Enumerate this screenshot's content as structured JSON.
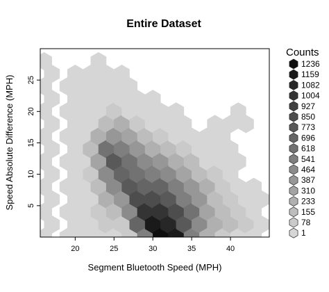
{
  "chart_data": {
    "type": "heatmap",
    "title": "Entire Dataset",
    "xlabel": "Segment Bluetooth Speed (MPH)",
    "ylabel": "Speed Absolute Difference (MPH)",
    "xlim": [
      15.5,
      45
    ],
    "ylim": [
      0,
      30
    ],
    "x_ticks": [
      20,
      25,
      30,
      35,
      40
    ],
    "y_ticks": [
      5,
      10,
      15,
      20,
      25
    ],
    "grid": false,
    "legend": {
      "title": "Counts",
      "placement": "right",
      "levels": [
        1236,
        1159,
        1082,
        1004,
        927,
        850,
        773,
        696,
        618,
        541,
        464,
        387,
        310,
        233,
        155,
        78,
        1
      ]
    },
    "hex_radius": 1.2,
    "bins": [
      {
        "x": 16,
        "y": 28,
        "count": 1
      },
      {
        "x": 16,
        "y": 24,
        "count": 1
      },
      {
        "x": 16,
        "y": 20,
        "count": 1
      },
      {
        "x": 16,
        "y": 16,
        "count": 1
      },
      {
        "x": 16,
        "y": 12,
        "count": 1
      },
      {
        "x": 16,
        "y": 8,
        "count": 1
      },
      {
        "x": 16,
        "y": 4,
        "count": 1
      },
      {
        "x": 16,
        "y": 0,
        "count": 1
      },
      {
        "x": 17,
        "y": 26,
        "count": 1
      },
      {
        "x": 17,
        "y": 22,
        "count": 1
      },
      {
        "x": 17,
        "y": 18,
        "count": 1
      },
      {
        "x": 17,
        "y": 14,
        "count": 1
      },
      {
        "x": 17,
        "y": 10,
        "count": 1
      },
      {
        "x": 17,
        "y": 6,
        "count": 1
      },
      {
        "x": 17,
        "y": 2,
        "count": 1
      },
      {
        "x": 19,
        "y": 24,
        "count": 1
      },
      {
        "x": 19,
        "y": 20,
        "count": 1
      },
      {
        "x": 19,
        "y": 16,
        "count": 1
      },
      {
        "x": 19,
        "y": 12,
        "count": 1
      },
      {
        "x": 19,
        "y": 8,
        "count": 1
      },
      {
        "x": 19,
        "y": 4,
        "count": 1
      },
      {
        "x": 19,
        "y": 0,
        "count": 1
      },
      {
        "x": 20,
        "y": 26,
        "count": 1
      },
      {
        "x": 20,
        "y": 22,
        "count": 1
      },
      {
        "x": 20,
        "y": 18,
        "count": 1
      },
      {
        "x": 20,
        "y": 14,
        "count": 1
      },
      {
        "x": 20,
        "y": 10,
        "count": 1
      },
      {
        "x": 20,
        "y": 6,
        "count": 1
      },
      {
        "x": 20,
        "y": 2,
        "count": 1
      },
      {
        "x": 21,
        "y": 24,
        "count": 1
      },
      {
        "x": 21,
        "y": 20,
        "count": 1
      },
      {
        "x": 21,
        "y": 16,
        "count": 1
      },
      {
        "x": 21,
        "y": 12,
        "count": 1
      },
      {
        "x": 21,
        "y": 8,
        "count": 1
      },
      {
        "x": 21,
        "y": 4,
        "count": 1
      },
      {
        "x": 21,
        "y": 0,
        "count": 1
      },
      {
        "x": 22,
        "y": 26,
        "count": 1
      },
      {
        "x": 22,
        "y": 22,
        "count": 1
      },
      {
        "x": 22,
        "y": 18,
        "count": 1
      },
      {
        "x": 22,
        "y": 14,
        "count": 155
      },
      {
        "x": 22,
        "y": 10,
        "count": 78
      },
      {
        "x": 22,
        "y": 6,
        "count": 1
      },
      {
        "x": 22,
        "y": 2,
        "count": 1
      },
      {
        "x": 23,
        "y": 28,
        "count": 1
      },
      {
        "x": 23,
        "y": 24,
        "count": 1
      },
      {
        "x": 23,
        "y": 20,
        "count": 1
      },
      {
        "x": 23,
        "y": 16,
        "count": 233
      },
      {
        "x": 23,
        "y": 12,
        "count": 310
      },
      {
        "x": 23,
        "y": 8,
        "count": 155
      },
      {
        "x": 23,
        "y": 4,
        "count": 78
      },
      {
        "x": 23,
        "y": 0,
        "count": 1
      },
      {
        "x": 24,
        "y": 26,
        "count": 1
      },
      {
        "x": 24,
        "y": 22,
        "count": 1
      },
      {
        "x": 24,
        "y": 18,
        "count": 155
      },
      {
        "x": 24,
        "y": 14,
        "count": 618
      },
      {
        "x": 24,
        "y": 10,
        "count": 464
      },
      {
        "x": 24,
        "y": 6,
        "count": 233
      },
      {
        "x": 24,
        "y": 2,
        "count": 78
      },
      {
        "x": 25,
        "y": 24,
        "count": 1
      },
      {
        "x": 25,
        "y": 20,
        "count": 78
      },
      {
        "x": 25,
        "y": 16,
        "count": 387
      },
      {
        "x": 25,
        "y": 12,
        "count": 773
      },
      {
        "x": 25,
        "y": 8,
        "count": 464
      },
      {
        "x": 25,
        "y": 4,
        "count": 155
      },
      {
        "x": 25,
        "y": 0,
        "count": 1
      },
      {
        "x": 26,
        "y": 26,
        "count": 1
      },
      {
        "x": 26,
        "y": 22,
        "count": 1
      },
      {
        "x": 26,
        "y": 18,
        "count": 233
      },
      {
        "x": 26,
        "y": 14,
        "count": 541
      },
      {
        "x": 26,
        "y": 10,
        "count": 696
      },
      {
        "x": 26,
        "y": 6,
        "count": 387
      },
      {
        "x": 26,
        "y": 2,
        "count": 78
      },
      {
        "x": 27,
        "y": 24,
        "count": 1
      },
      {
        "x": 27,
        "y": 20,
        "count": 1
      },
      {
        "x": 27,
        "y": 16,
        "count": 310
      },
      {
        "x": 27,
        "y": 12,
        "count": 618
      },
      {
        "x": 27,
        "y": 8,
        "count": 773
      },
      {
        "x": 27,
        "y": 4,
        "count": 464
      },
      {
        "x": 27,
        "y": 0,
        "count": 78
      },
      {
        "x": 28,
        "y": 22,
        "count": 1
      },
      {
        "x": 28,
        "y": 18,
        "count": 78
      },
      {
        "x": 28,
        "y": 14,
        "count": 387
      },
      {
        "x": 28,
        "y": 10,
        "count": 618
      },
      {
        "x": 28,
        "y": 6,
        "count": 850
      },
      {
        "x": 28,
        "y": 2,
        "count": 696
      },
      {
        "x": 29,
        "y": 20,
        "count": 1
      },
      {
        "x": 29,
        "y": 16,
        "count": 155
      },
      {
        "x": 29,
        "y": 12,
        "count": 464
      },
      {
        "x": 29,
        "y": 8,
        "count": 696
      },
      {
        "x": 29,
        "y": 4,
        "count": 1004
      },
      {
        "x": 29,
        "y": 0,
        "count": 541
      },
      {
        "x": 30,
        "y": 22,
        "count": 1
      },
      {
        "x": 30,
        "y": 18,
        "count": 1
      },
      {
        "x": 30,
        "y": 14,
        "count": 233
      },
      {
        "x": 30,
        "y": 10,
        "count": 541
      },
      {
        "x": 30,
        "y": 6,
        "count": 850
      },
      {
        "x": 30,
        "y": 2,
        "count": 1159
      },
      {
        "x": 31,
        "y": 20,
        "count": 1
      },
      {
        "x": 31,
        "y": 16,
        "count": 78
      },
      {
        "x": 31,
        "y": 12,
        "count": 387
      },
      {
        "x": 31,
        "y": 8,
        "count": 696
      },
      {
        "x": 31,
        "y": 4,
        "count": 1004
      },
      {
        "x": 31,
        "y": 0,
        "count": 1236
      },
      {
        "x": 32,
        "y": 18,
        "count": 1
      },
      {
        "x": 32,
        "y": 14,
        "count": 155
      },
      {
        "x": 32,
        "y": 10,
        "count": 464
      },
      {
        "x": 32,
        "y": 6,
        "count": 773
      },
      {
        "x": 32,
        "y": 2,
        "count": 1082
      },
      {
        "x": 33,
        "y": 20,
        "count": 1
      },
      {
        "x": 33,
        "y": 16,
        "count": 1
      },
      {
        "x": 33,
        "y": 12,
        "count": 233
      },
      {
        "x": 33,
        "y": 8,
        "count": 541
      },
      {
        "x": 33,
        "y": 4,
        "count": 850
      },
      {
        "x": 33,
        "y": 0,
        "count": 1159
      },
      {
        "x": 34,
        "y": 18,
        "count": 1
      },
      {
        "x": 34,
        "y": 14,
        "count": 78
      },
      {
        "x": 34,
        "y": 10,
        "count": 310
      },
      {
        "x": 34,
        "y": 6,
        "count": 541
      },
      {
        "x": 34,
        "y": 2,
        "count": 773
      },
      {
        "x": 35,
        "y": 16,
        "count": 1
      },
      {
        "x": 35,
        "y": 12,
        "count": 155
      },
      {
        "x": 35,
        "y": 8,
        "count": 387
      },
      {
        "x": 35,
        "y": 4,
        "count": 618
      },
      {
        "x": 35,
        "y": 0,
        "count": 541
      },
      {
        "x": 36,
        "y": 14,
        "count": 1
      },
      {
        "x": 36,
        "y": 10,
        "count": 155
      },
      {
        "x": 36,
        "y": 6,
        "count": 387
      },
      {
        "x": 36,
        "y": 2,
        "count": 464
      },
      {
        "x": 37,
        "y": 16,
        "count": 1
      },
      {
        "x": 37,
        "y": 12,
        "count": 1
      },
      {
        "x": 37,
        "y": 8,
        "count": 233
      },
      {
        "x": 37,
        "y": 4,
        "count": 310
      },
      {
        "x": 37,
        "y": 0,
        "count": 233
      },
      {
        "x": 38,
        "y": 18,
        "count": 1
      },
      {
        "x": 38,
        "y": 14,
        "count": 1
      },
      {
        "x": 38,
        "y": 10,
        "count": 78
      },
      {
        "x": 38,
        "y": 6,
        "count": 155
      },
      {
        "x": 38,
        "y": 2,
        "count": 233
      },
      {
        "x": 39,
        "y": 16,
        "count": 1
      },
      {
        "x": 39,
        "y": 12,
        "count": 1
      },
      {
        "x": 39,
        "y": 8,
        "count": 78
      },
      {
        "x": 39,
        "y": 4,
        "count": 155
      },
      {
        "x": 39,
        "y": 0,
        "count": 78
      },
      {
        "x": 40,
        "y": 18,
        "count": 1
      },
      {
        "x": 40,
        "y": 14,
        "count": 1
      },
      {
        "x": 40,
        "y": 10,
        "count": 1
      },
      {
        "x": 40,
        "y": 6,
        "count": 78
      },
      {
        "x": 40,
        "y": 2,
        "count": 155
      },
      {
        "x": 41,
        "y": 20,
        "count": 1
      },
      {
        "x": 41,
        "y": 12,
        "count": 1
      },
      {
        "x": 41,
        "y": 8,
        "count": 1
      },
      {
        "x": 41,
        "y": 4,
        "count": 78
      },
      {
        "x": 41,
        "y": 0,
        "count": 1
      },
      {
        "x": 42,
        "y": 18,
        "count": 1
      },
      {
        "x": 42,
        "y": 6,
        "count": 1
      },
      {
        "x": 42,
        "y": 2,
        "count": 78
      },
      {
        "x": 43,
        "y": 8,
        "count": 1
      },
      {
        "x": 43,
        "y": 4,
        "count": 1
      },
      {
        "x": 43,
        "y": 0,
        "count": 1
      },
      {
        "x": 44,
        "y": 6,
        "count": 1
      },
      {
        "x": 44,
        "y": 2,
        "count": 1
      }
    ]
  }
}
